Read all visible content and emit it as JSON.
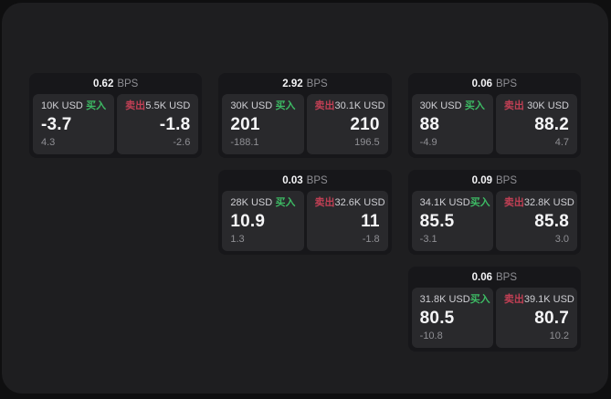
{
  "labels": {
    "bps": "BPS",
    "buy": "买入",
    "sell": "卖出"
  },
  "colors": {
    "buy_green": "#3dba64",
    "sell_red": "#c03f54",
    "panel_bg": "#1e1e20",
    "card_bg": "#17171a",
    "pane_bg": "#29292c"
  },
  "cards": [
    {
      "row": 1,
      "col": 1,
      "bps": "0.62",
      "buy": {
        "size": "10K USD",
        "price": "-3.7",
        "delta": "4.3"
      },
      "sell": {
        "size": "5.5K USD",
        "price": "-1.8",
        "delta": "-2.6"
      }
    },
    {
      "row": 1,
      "col": 2,
      "bps": "2.92",
      "buy": {
        "size": "30K USD",
        "price": "201",
        "delta": "-188.1"
      },
      "sell": {
        "size": "30.1K USD",
        "price": "210",
        "delta": "196.5"
      }
    },
    {
      "row": 1,
      "col": 3,
      "bps": "0.06",
      "buy": {
        "size": "30K USD",
        "price": "88",
        "delta": "-4.9"
      },
      "sell": {
        "size": "30K USD",
        "price": "88.2",
        "delta": "4.7"
      }
    },
    {
      "row": 2,
      "col": 2,
      "bps": "0.03",
      "buy": {
        "size": "28K USD",
        "price": "10.9",
        "delta": "1.3"
      },
      "sell": {
        "size": "32.6K USD",
        "price": "11",
        "delta": "-1.8"
      }
    },
    {
      "row": 2,
      "col": 3,
      "bps": "0.09",
      "buy": {
        "size": "34.1K USD",
        "price": "85.5",
        "delta": "-3.1"
      },
      "sell": {
        "size": "32.8K USD",
        "price": "85.8",
        "delta": "3.0"
      }
    },
    {
      "row": 3,
      "col": 3,
      "bps": "0.06",
      "buy": {
        "size": "31.8K USD",
        "price": "80.5",
        "delta": "-10.8"
      },
      "sell": {
        "size": "39.1K USD",
        "price": "80.7",
        "delta": "10.2"
      }
    }
  ]
}
